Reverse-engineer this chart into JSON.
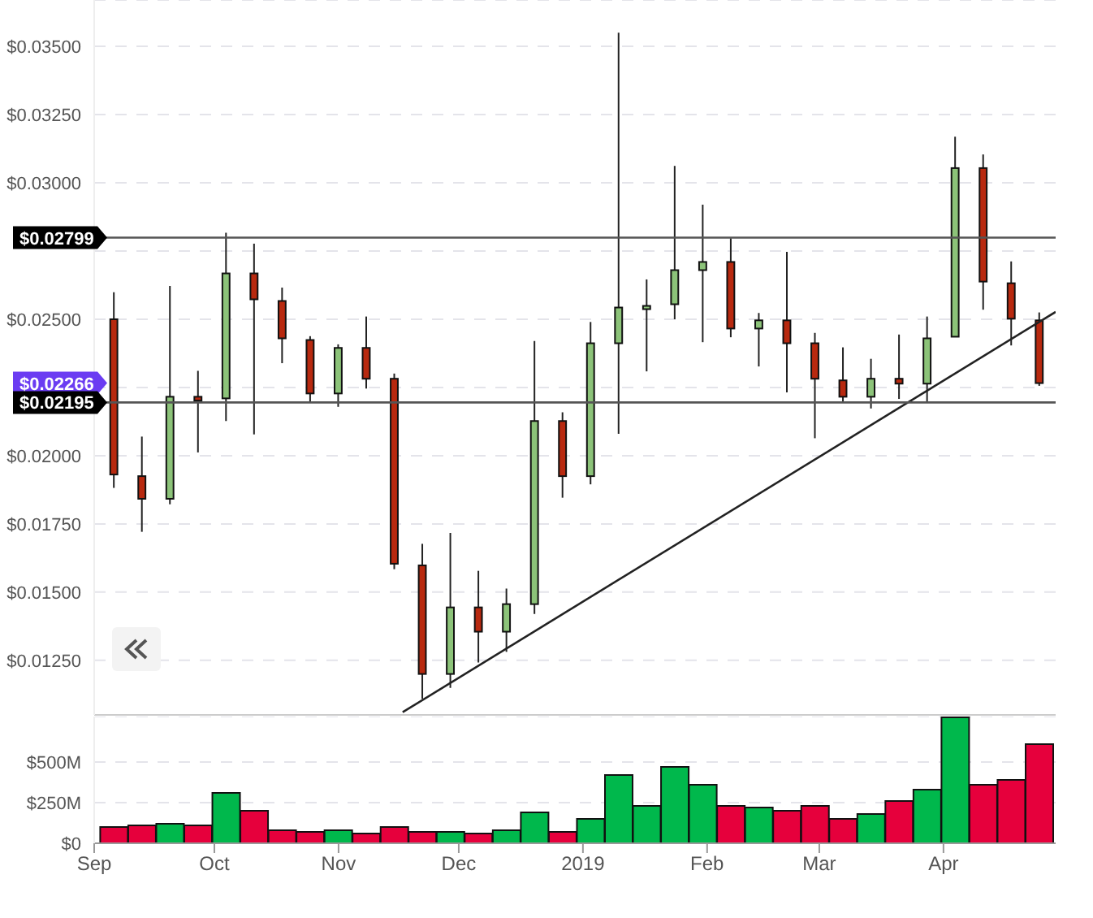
{
  "chart_data": [
    {
      "type": "candlestick",
      "x": [
        "2018-09-06",
        "2018-09-13",
        "2018-09-20",
        "2018-09-27",
        "2018-10-04",
        "2018-10-11",
        "2018-10-18",
        "2018-10-25",
        "2018-11-01",
        "2018-11-08",
        "2018-11-15",
        "2018-11-22",
        "2018-11-29",
        "2018-12-06",
        "2018-12-13",
        "2018-12-20",
        "2018-12-27",
        "2019-01-03",
        "2019-01-10",
        "2019-01-17",
        "2019-01-24",
        "2019-01-31",
        "2019-02-07",
        "2019-02-14",
        "2019-02-21",
        "2019-02-28",
        "2019-03-07",
        "2019-03-14",
        "2019-03-21",
        "2019-03-28",
        "2019-04-04",
        "2019-04-11",
        "2019-04-18",
        "2019-04-25"
      ],
      "ohlc": [
        [
          0.025,
          0.02599,
          0.01882,
          0.01931
        ],
        [
          0.01925,
          0.0207,
          0.01721,
          0.01842
        ],
        [
          0.01842,
          0.02622,
          0.01822,
          0.02216
        ],
        [
          0.02216,
          0.02311,
          0.02012,
          0.02202
        ],
        [
          0.0221,
          0.02817,
          0.02127,
          0.02668
        ],
        [
          0.02668,
          0.02777,
          0.02078,
          0.02573
        ],
        [
          0.02567,
          0.02616,
          0.02339,
          0.0243
        ],
        [
          0.02424,
          0.02438,
          0.02196,
          0.02228
        ],
        [
          0.02228,
          0.02408,
          0.02179,
          0.02395
        ],
        [
          0.02395,
          0.0251,
          0.02246,
          0.02282
        ],
        [
          0.02282,
          0.02301,
          0.01584,
          0.01604
        ],
        [
          0.01598,
          0.01677,
          0.01109,
          0.012
        ],
        [
          0.012,
          0.01717,
          0.01149,
          0.01444
        ],
        [
          0.01444,
          0.01578,
          0.01242,
          0.01355
        ],
        [
          0.01355,
          0.01513,
          0.01281,
          0.01456
        ],
        [
          0.01456,
          0.0242,
          0.0142,
          0.02127
        ],
        [
          0.02127,
          0.02159,
          0.01846,
          0.01925
        ],
        [
          0.01925,
          0.0249,
          0.01895,
          0.02412
        ],
        [
          0.02412,
          0.0355,
          0.0208,
          0.02543
        ],
        [
          0.02537,
          0.02646,
          0.02309,
          0.02549
        ],
        [
          0.02555,
          0.03062,
          0.025,
          0.0268
        ],
        [
          0.0268,
          0.0292,
          0.02416,
          0.0271
        ],
        [
          0.0271,
          0.02797,
          0.02434,
          0.02466
        ],
        [
          0.02466,
          0.02523,
          0.02327,
          0.02496
        ],
        [
          0.02496,
          0.02747,
          0.02232,
          0.02412
        ],
        [
          0.02412,
          0.0245,
          0.02064,
          0.02282
        ],
        [
          0.02276,
          0.02397,
          0.02196,
          0.02216
        ],
        [
          0.02216,
          0.02355,
          0.02173,
          0.02282
        ],
        [
          0.02282,
          0.02444,
          0.02208,
          0.02264
        ],
        [
          0.02264,
          0.0251,
          0.02198,
          0.0243
        ],
        [
          0.02436,
          0.03169,
          0.02436,
          0.03054
        ],
        [
          0.03054,
          0.03104,
          0.02535,
          0.02638
        ],
        [
          0.02632,
          0.02712,
          0.02404,
          0.02502
        ],
        [
          0.02496,
          0.02525,
          0.02256,
          0.02266
        ]
      ],
      "colors": [
        "#b8290f",
        "#b8290f",
        "#8cc379",
        "#b8290f",
        "#8cc379",
        "#b8290f",
        "#b8290f",
        "#b8290f",
        "#8cc379",
        "#b8290f",
        "#b8290f",
        "#b8290f",
        "#8cc379",
        "#b8290f",
        "#8cc379",
        "#8cc379",
        "#b8290f",
        "#8cc379",
        "#8cc379",
        "#8cc379",
        "#8cc379",
        "#8cc379",
        "#b8290f",
        "#8cc379",
        "#b8290f",
        "#b8290f",
        "#b8290f",
        "#8cc379",
        "#b8290f",
        "#8cc379",
        "#8cc379",
        "#b8290f",
        "#b8290f",
        "#b8290f"
      ],
      "series": [
        {
          "type": "line",
          "color": "#222222",
          "x": [
            "2018-11-17",
            "2019-04-29"
          ],
          "values": [
            0.0106,
            0.02527
          ]
        }
      ],
      "xlim": [
        "2018-09-01",
        "2019-04-29"
      ],
      "ylim": [
        0.0105,
        0.0367
      ],
      "yticks": [
        {
          "value": 0.0125,
          "label": "$0.01250"
        },
        {
          "value": 0.015,
          "label": "$0.01500"
        },
        {
          "value": 0.0175,
          "label": "$0.01750"
        },
        {
          "value": 0.02,
          "label": "$0.02000"
        },
        {
          "value": 0.0225,
          "label": null
        },
        {
          "value": 0.025,
          "label": "$0.02500"
        },
        {
          "value": 0.0275,
          "label": null
        },
        {
          "value": 0.03,
          "label": "$0.03000"
        },
        {
          "value": 0.0325,
          "label": "$0.03250"
        },
        {
          "value": 0.035,
          "label": "$0.03500"
        }
      ],
      "grid": "y",
      "tick_labels": "y",
      "ref_lines": [
        {
          "axis": "y",
          "value": 0.02799,
          "label": "$0.02799",
          "color": "#555555"
        },
        {
          "axis": "y",
          "value": 0.02195,
          "label": "$0.02195",
          "color": "#555555"
        }
      ],
      "annotations": [
        "$0.02266"
      ]
    },
    {
      "type": "bar",
      "x": [
        "2018-09-06",
        "2018-09-13",
        "2018-09-20",
        "2018-09-27",
        "2018-10-04",
        "2018-10-11",
        "2018-10-18",
        "2018-10-25",
        "2018-11-01",
        "2018-11-08",
        "2018-11-15",
        "2018-11-22",
        "2018-11-29",
        "2018-12-06",
        "2018-12-13",
        "2018-12-20",
        "2018-12-27",
        "2019-01-03",
        "2019-01-10",
        "2019-01-17",
        "2019-01-24",
        "2019-01-31",
        "2019-02-07",
        "2019-02-14",
        "2019-02-21",
        "2019-02-28",
        "2019-03-07",
        "2019-03-14",
        "2019-03-21",
        "2019-03-28",
        "2019-04-04",
        "2019-04-11",
        "2019-04-18",
        "2019-04-25"
      ],
      "values": [
        100,
        110,
        120,
        110,
        310,
        200,
        80,
        70,
        80,
        60,
        100,
        70,
        70,
        60,
        80,
        190,
        70,
        150,
        420,
        230,
        470,
        360,
        230,
        220,
        200,
        230,
        150,
        180,
        260,
        330,
        775,
        360,
        390,
        610
      ],
      "colors": [
        "#e6003c",
        "#e6003c",
        "#00b84c",
        "#e6003c",
        "#00b84c",
        "#e6003c",
        "#e6003c",
        "#e6003c",
        "#00b84c",
        "#e6003c",
        "#e6003c",
        "#e6003c",
        "#00b84c",
        "#e6003c",
        "#00b84c",
        "#00b84c",
        "#e6003c",
        "#00b84c",
        "#00b84c",
        "#00b84c",
        "#00b84c",
        "#00b84c",
        "#e6003c",
        "#00b84c",
        "#e6003c",
        "#e6003c",
        "#e6003c",
        "#00b84c",
        "#e6003c",
        "#00b84c",
        "#00b84c",
        "#e6003c",
        "#e6003c",
        "#e6003c"
      ],
      "xlim": [
        "2018-09-01",
        "2019-04-29"
      ],
      "xticks": [
        {
          "value": "2018-09-01",
          "label": "Sep"
        },
        {
          "value": "2018-10-01",
          "label": "Oct"
        },
        {
          "value": "2018-11-01",
          "label": "Nov"
        },
        {
          "value": "2018-12-01",
          "label": "Dec"
        },
        {
          "value": "2019-01-01",
          "label": "2019"
        },
        {
          "value": "2019-02-01",
          "label": "Feb"
        },
        {
          "value": "2019-03-01",
          "label": "Mar"
        },
        {
          "value": "2019-04-01",
          "label": "Apr"
        }
      ],
      "ylim": [
        0,
        780
      ],
      "yticks": [
        {
          "value": 0,
          "label": "$0"
        },
        {
          "value": 250,
          "label": "$250M"
        },
        {
          "value": 500,
          "label": "$500M"
        }
      ],
      "grid": "y"
    }
  ]
}
